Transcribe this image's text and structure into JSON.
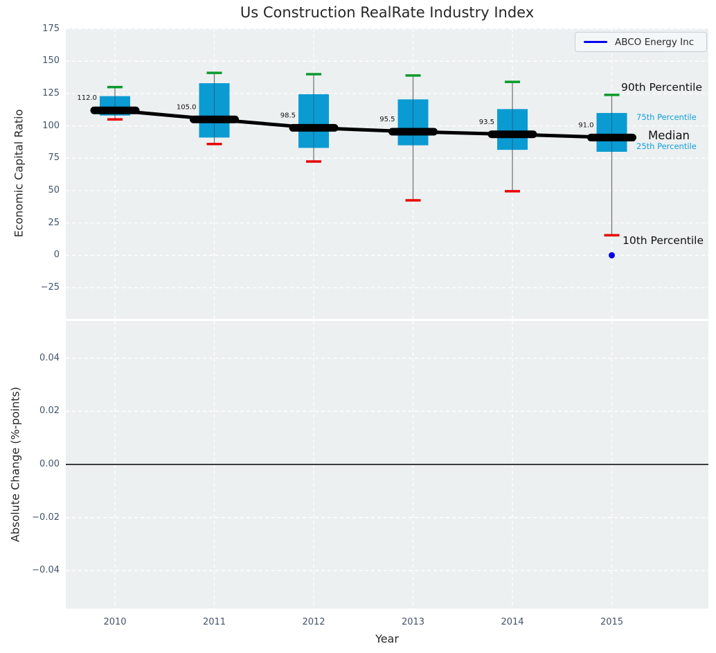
{
  "title": "Us Construction RealRate Industry Index",
  "legend": {
    "label": "ABCO Energy Inc"
  },
  "annotations": {
    "p90": "90th Percentile",
    "p75": "75th Percentile",
    "median": "Median",
    "p25": "25th Percentile",
    "p10": "10th Percentile"
  },
  "chart_data": {
    "type": "boxplot",
    "title": "Us Construction RealRate Industry Index",
    "x_axis": {
      "label": "Year",
      "ticks": [
        "2010",
        "2011",
        "2012",
        "2013",
        "2014",
        "2015"
      ],
      "tick_values": [
        2010,
        2011,
        2012,
        2013,
        2014,
        2015
      ]
    },
    "top_panel": {
      "ylabel": "Economic Capital Ratio",
      "ytick_labels": [
        "175",
        "150",
        "125",
        "100",
        "75",
        "50",
        "25",
        "0",
        "−25"
      ],
      "ytick_values": [
        175,
        150,
        125,
        100,
        75,
        50,
        25,
        0,
        -25
      ],
      "ylim": [
        -49,
        175.5
      ],
      "grid": "white-dashed",
      "whisker_definition": {
        "high": "90th percentile",
        "box_top": "75th percentile",
        "center": "median",
        "box_bottom": "25th percentile",
        "low": "10th percentile"
      },
      "boxes": [
        {
          "year": 2010,
          "p90": 130,
          "p75": 123,
          "median": 112,
          "p25": 108,
          "p10": 105,
          "median_label": "112.0"
        },
        {
          "year": 2011,
          "p90": 141,
          "p75": 133,
          "median": 105,
          "p25": 91,
          "p10": 86,
          "median_label": "105.0"
        },
        {
          "year": 2012,
          "p90": 140,
          "p75": 124.5,
          "median": 98.5,
          "p25": 83,
          "p10": 72.5,
          "median_label": "98.5"
        },
        {
          "year": 2013,
          "p90": 139,
          "p75": 120.5,
          "median": 95.5,
          "p25": 85,
          "p10": 42.5,
          "median_label": "95.5"
        },
        {
          "year": 2014,
          "p90": 134,
          "p75": 113,
          "median": 93.5,
          "p25": 81.5,
          "p10": 49.5,
          "median_label": "93.5"
        },
        {
          "year": 2015,
          "p90": 124,
          "p75": 110,
          "median": 91,
          "p25": 80,
          "p10": 15.5,
          "median_label": "91.0"
        }
      ],
      "series": [
        {
          "name": "ABCO Energy Inc",
          "type": "scatter",
          "color": "#0000ee",
          "points": [
            {
              "x": 2015,
              "y": 0
            }
          ]
        }
      ]
    },
    "bottom_panel": {
      "ylabel": "Absolute Change (%-points)",
      "ytick_labels": [
        "0.04",
        "0.02",
        "0.00",
        "−0.02",
        "−0.04"
      ],
      "ytick_values": [
        0.04,
        0.02,
        0,
        -0.02,
        -0.04
      ],
      "zero_line": true,
      "series": []
    },
    "colors": {
      "box_fill": "#0b9bd3",
      "median_line": "#000000",
      "cap_90th": "#0a9a2a",
      "cap_10th": "#e80000",
      "whisker": "#6e6e6e",
      "abco_blue": "#0000ee",
      "panel_background": "#ecf0f1",
      "gridline": "#ffffff",
      "tick_text": "#44536a",
      "percentile_label_cyan": "#15a0da"
    }
  }
}
